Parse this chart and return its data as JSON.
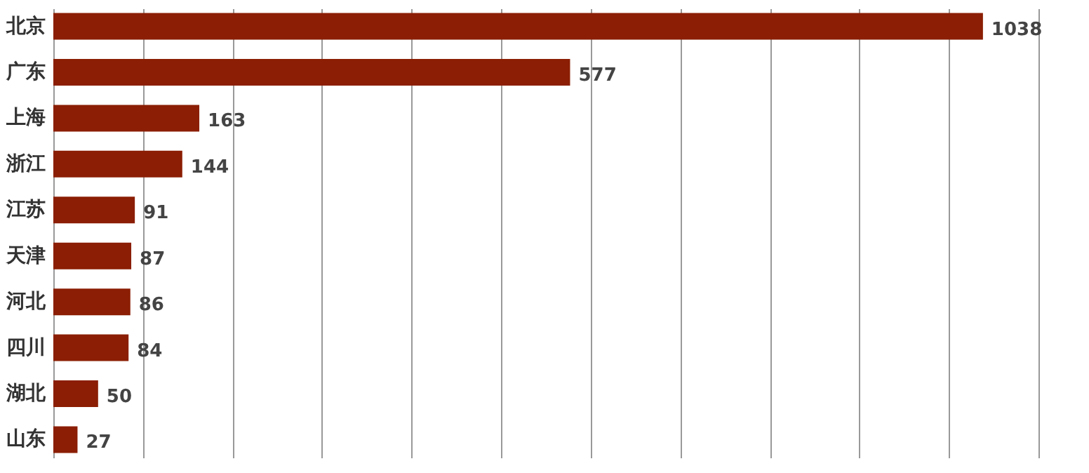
{
  "chart_data": {
    "type": "bar",
    "orientation": "horizontal",
    "categories": [
      "北京",
      "广东",
      "上海",
      "浙江",
      "江苏",
      "天津",
      "河北",
      "四川",
      "湖北",
      "山东"
    ],
    "values": [
      1038,
      577,
      163,
      144,
      91,
      87,
      86,
      84,
      50,
      27
    ],
    "color": "#8b1e04",
    "data_labels": true,
    "grid": "x",
    "tick_labels": "y"
  }
}
